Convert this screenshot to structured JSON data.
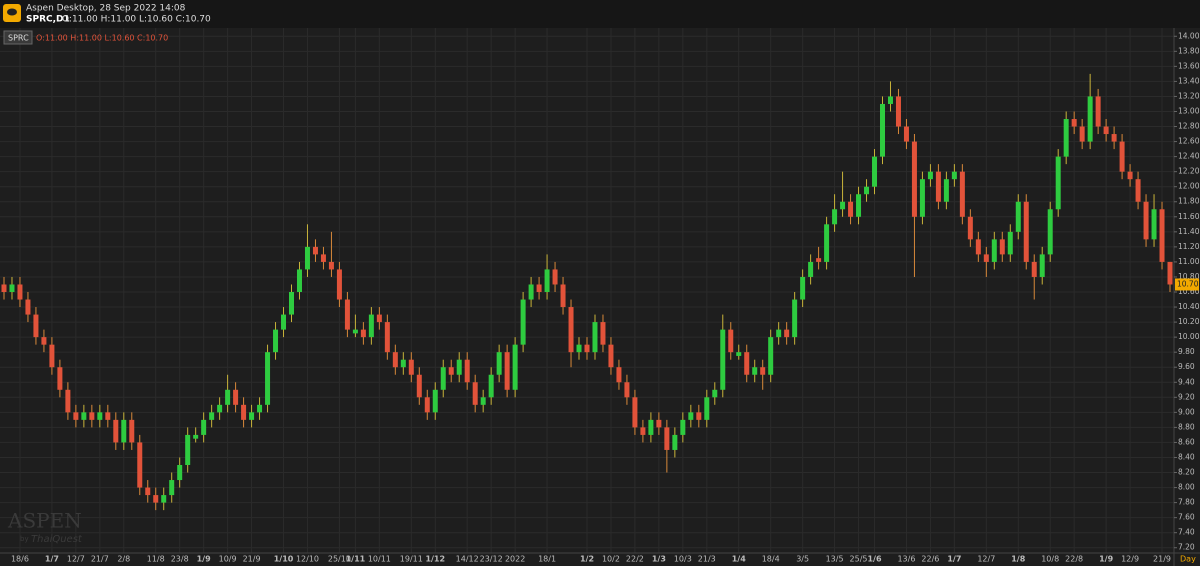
{
  "window": {
    "title": "Aspen Desktop, 28 Sep 2022 14:08",
    "symbol": "SPRC,D1",
    "ohlc_text": "O:11.00 H:11.00 L:10.60 C:10.70"
  },
  "chart_data": {
    "type": "candlestick",
    "symbol": "SPRC",
    "ohlc_label": "O:11.00 H:11.00 L:10.60 C:10.70",
    "up_color": "#2ecc40",
    "down_color": "#e2533a",
    "grid": true,
    "period": "Day",
    "watermark": {
      "brand": "ASPEN",
      "by": "by",
      "maker": "ThaiQuest"
    },
    "last_price": {
      "value": 10.7,
      "label": "10.70"
    },
    "ylim": [
      7.13,
      14.11
    ],
    "yticks": [
      {
        "value": 7.2,
        "label": "7.20"
      },
      {
        "value": 7.4,
        "label": "7.40"
      },
      {
        "value": 7.6,
        "label": "7.60"
      },
      {
        "value": 7.8,
        "label": "7.80"
      },
      {
        "value": 8,
        "label": "8.00"
      },
      {
        "value": 8.2,
        "label": "8.20"
      },
      {
        "value": 8.4,
        "label": "8.40"
      },
      {
        "value": 8.6,
        "label": "8.60"
      },
      {
        "value": 8.8,
        "label": "8.80"
      },
      {
        "value": 9,
        "label": "9.00"
      },
      {
        "value": 9.2,
        "label": "9.20"
      },
      {
        "value": 9.4,
        "label": "9.40"
      },
      {
        "value": 9.6,
        "label": "9.60"
      },
      {
        "value": 9.8,
        "label": "9.80"
      },
      {
        "value": 10,
        "label": "10.00"
      },
      {
        "value": 10.2,
        "label": "10.20"
      },
      {
        "value": 10.4,
        "label": "10.40"
      },
      {
        "value": 10.6,
        "label": "10.60"
      },
      {
        "value": 10.8,
        "label": "10.80"
      },
      {
        "value": 11,
        "label": "11.00"
      },
      {
        "value": 11.2,
        "label": "11.20"
      },
      {
        "value": 11.4,
        "label": "11.40"
      },
      {
        "value": 11.6,
        "label": "11.60"
      },
      {
        "value": 11.8,
        "label": "11.80"
      },
      {
        "value": 12,
        "label": "12.00"
      },
      {
        "value": 12.2,
        "label": "12.20"
      },
      {
        "value": 12.4,
        "label": "12.40"
      },
      {
        "value": 12.6,
        "label": "12.60"
      },
      {
        "value": 12.8,
        "label": "12.80"
      },
      {
        "value": 13,
        "label": "13.00"
      },
      {
        "value": 13.2,
        "label": "13.20"
      },
      {
        "value": 13.4,
        "label": "13.40"
      },
      {
        "value": 13.6,
        "label": "13.60"
      },
      {
        "value": 13.8,
        "label": "13.80"
      },
      {
        "value": 14,
        "label": "14.00"
      }
    ],
    "categories": [
      null,
      null,
      "18/6",
      null,
      null,
      null,
      "1/7",
      null,
      null,
      "12/7",
      null,
      null,
      "21/7",
      null,
      null,
      "2/8",
      null,
      null,
      null,
      "11/8",
      null,
      null,
      "23/8",
      null,
      null,
      "1/9",
      null,
      null,
      "10/9",
      null,
      null,
      "21/9",
      null,
      null,
      null,
      "1/10",
      null,
      null,
      "12/10",
      null,
      null,
      null,
      "25/10",
      null,
      "1/11",
      null,
      null,
      "10/11",
      null,
      null,
      null,
      "19/11",
      null,
      null,
      "1/12",
      null,
      null,
      null,
      "14/12",
      null,
      null,
      "23/12",
      null,
      null,
      "2022",
      null,
      null,
      null,
      "18/1",
      null,
      null,
      null,
      null,
      "1/2",
      null,
      null,
      "10/2",
      null,
      null,
      "22/2",
      null,
      null,
      "1/3",
      null,
      null,
      "10/3",
      null,
      null,
      "21/3",
      null,
      null,
      null,
      "1/4",
      null,
      null,
      null,
      "18/4",
      null,
      null,
      null,
      "3/5",
      null,
      null,
      null,
      "13/5",
      null,
      null,
      "25/5",
      null,
      "1/6",
      null,
      null,
      null,
      "13/6",
      null,
      null,
      "22/6",
      null,
      null,
      "1/7",
      null,
      null,
      null,
      "12/7",
      null,
      null,
      null,
      "1/8",
      null,
      null,
      null,
      "10/8",
      null,
      null,
      "22/8",
      null,
      null,
      null,
      "1/9",
      null,
      null,
      "12/9",
      null,
      null,
      null,
      "21/9",
      null
    ],
    "ohlc": [
      [
        10.7,
        10.8,
        10.5,
        10.6
      ],
      [
        10.6,
        10.8,
        10.5,
        10.7
      ],
      [
        10.7,
        10.8,
        10.4,
        10.5
      ],
      [
        10.5,
        10.6,
        10.2,
        10.3
      ],
      [
        10.3,
        10.4,
        9.9,
        10
      ],
      [
        10,
        10.1,
        9.8,
        9.9
      ],
      [
        9.9,
        10,
        9.5,
        9.6
      ],
      [
        9.6,
        9.7,
        9.2,
        9.3
      ],
      [
        9.3,
        9.4,
        8.9,
        9
      ],
      [
        9,
        9.1,
        8.8,
        8.9
      ],
      [
        8.9,
        9.1,
        8.8,
        9
      ],
      [
        9,
        9.1,
        8.8,
        8.9
      ],
      [
        8.9,
        9.1,
        8.8,
        9
      ],
      [
        9,
        9.1,
        8.8,
        8.9
      ],
      [
        8.9,
        9,
        8.5,
        8.6
      ],
      [
        8.6,
        9,
        8.5,
        8.9
      ],
      [
        8.9,
        9,
        8.5,
        8.6
      ],
      [
        8.6,
        8.7,
        7.9,
        8
      ],
      [
        8,
        8.1,
        7.8,
        7.9
      ],
      [
        7.9,
        8,
        7.7,
        7.8
      ],
      [
        7.8,
        8,
        7.7,
        7.9
      ],
      [
        7.9,
        8.2,
        7.8,
        8.1
      ],
      [
        8.1,
        8.4,
        8,
        8.3
      ],
      [
        8.3,
        8.8,
        8.2,
        8.7
      ],
      [
        8.65,
        8.8,
        8.6,
        8.7
      ],
      [
        8.7,
        9,
        8.6,
        8.9
      ],
      [
        8.9,
        9.1,
        8.8,
        9
      ],
      [
        9,
        9.2,
        8.9,
        9.1
      ],
      [
        9.1,
        9.5,
        9,
        9.3
      ],
      [
        9.3,
        9.4,
        9,
        9.1
      ],
      [
        9.1,
        9.2,
        8.8,
        8.9
      ],
      [
        8.9,
        9.1,
        8.8,
        9
      ],
      [
        9,
        9.2,
        8.9,
        9.1
      ],
      [
        9.1,
        9.9,
        9,
        9.8
      ],
      [
        9.8,
        10.2,
        9.7,
        10.1
      ],
      [
        10.1,
        10.4,
        10,
        10.3
      ],
      [
        10.3,
        10.7,
        10.2,
        10.6
      ],
      [
        10.6,
        11,
        10.5,
        10.9
      ],
      [
        10.9,
        11.5,
        10.8,
        11.2
      ],
      [
        11.2,
        11.3,
        11,
        11.1
      ],
      [
        11.1,
        11.2,
        10.9,
        11
      ],
      [
        11,
        11.4,
        10.8,
        10.9
      ],
      [
        10.9,
        11,
        10.4,
        10.5
      ],
      [
        10.5,
        10.6,
        10,
        10.1
      ],
      [
        10.05,
        10.3,
        10,
        10.1
      ],
      [
        10.1,
        10.2,
        9.9,
        10
      ],
      [
        10,
        10.4,
        9.9,
        10.3
      ],
      [
        10.3,
        10.4,
        10.1,
        10.2
      ],
      [
        10.2,
        10.3,
        9.7,
        9.8
      ],
      [
        9.8,
        9.9,
        9.5,
        9.6
      ],
      [
        9.6,
        9.8,
        9.5,
        9.7
      ],
      [
        9.7,
        9.8,
        9.4,
        9.5
      ],
      [
        9.5,
        9.6,
        9.1,
        9.2
      ],
      [
        9.2,
        9.3,
        8.9,
        9
      ],
      [
        9,
        9.4,
        8.9,
        9.3
      ],
      [
        9.3,
        9.7,
        9.2,
        9.6
      ],
      [
        9.6,
        9.7,
        9.4,
        9.5
      ],
      [
        9.5,
        9.8,
        9.4,
        9.7
      ],
      [
        9.7,
        9.8,
        9.3,
        9.4
      ],
      [
        9.4,
        9.5,
        9,
        9.1
      ],
      [
        9.1,
        9.3,
        9,
        9.2
      ],
      [
        9.2,
        9.6,
        9.1,
        9.5
      ],
      [
        9.5,
        9.9,
        9.4,
        9.8
      ],
      [
        9.8,
        9.9,
        9.2,
        9.3
      ],
      [
        9.3,
        10,
        9.2,
        9.9
      ],
      [
        9.9,
        10.6,
        9.8,
        10.5
      ],
      [
        10.5,
        10.8,
        10.4,
        10.7
      ],
      [
        10.7,
        10.8,
        10.5,
        10.6
      ],
      [
        10.6,
        11.1,
        10.5,
        10.9
      ],
      [
        10.9,
        11,
        10.6,
        10.7
      ],
      [
        10.7,
        10.8,
        10.3,
        10.4
      ],
      [
        10.4,
        10.5,
        9.6,
        9.8
      ],
      [
        9.8,
        10,
        9.7,
        9.9
      ],
      [
        9.9,
        10,
        9.7,
        9.8
      ],
      [
        9.8,
        10.3,
        9.7,
        10.2
      ],
      [
        10.2,
        10.3,
        9.8,
        9.9
      ],
      [
        9.9,
        10,
        9.5,
        9.6
      ],
      [
        9.6,
        9.7,
        9.3,
        9.4
      ],
      [
        9.4,
        9.5,
        9.1,
        9.2
      ],
      [
        9.2,
        9.3,
        8.7,
        8.8
      ],
      [
        8.8,
        8.9,
        8.6,
        8.7
      ],
      [
        8.7,
        9,
        8.6,
        8.9
      ],
      [
        8.9,
        9,
        8.7,
        8.8
      ],
      [
        8.8,
        8.9,
        8.2,
        8.5
      ],
      [
        8.5,
        8.8,
        8.4,
        8.7
      ],
      [
        8.7,
        9,
        8.6,
        8.9
      ],
      [
        8.9,
        9.1,
        8.8,
        9
      ],
      [
        9,
        9.1,
        8.8,
        8.9
      ],
      [
        8.9,
        9.3,
        8.8,
        9.2
      ],
      [
        9.2,
        9.4,
        9.1,
        9.3
      ],
      [
        9.3,
        10.3,
        9.2,
        10.1
      ],
      [
        10.1,
        10.2,
        9.7,
        9.8
      ],
      [
        9.75,
        9.9,
        9.7,
        9.8
      ],
      [
        9.8,
        9.9,
        9.4,
        9.5
      ],
      [
        9.5,
        9.7,
        9.4,
        9.6
      ],
      [
        9.6,
        9.7,
        9.3,
        9.5
      ],
      [
        9.5,
        10.1,
        9.4,
        10
      ],
      [
        10,
        10.2,
        9.9,
        10.1
      ],
      [
        10.1,
        10.2,
        9.9,
        10
      ],
      [
        10,
        10.6,
        9.9,
        10.5
      ],
      [
        10.5,
        10.9,
        10.4,
        10.8
      ],
      [
        10.8,
        11.1,
        10.7,
        11
      ],
      [
        11.05,
        11.2,
        10.9,
        11
      ],
      [
        11,
        11.6,
        10.9,
        11.5
      ],
      [
        11.5,
        11.9,
        11.4,
        11.7
      ],
      [
        11.7,
        12.2,
        11.6,
        11.8
      ],
      [
        11.8,
        11.9,
        11.5,
        11.6
      ],
      [
        11.6,
        12,
        11.5,
        11.9
      ],
      [
        11.9,
        12.1,
        11.8,
        12
      ],
      [
        12,
        12.5,
        11.9,
        12.4
      ],
      [
        12.4,
        13.2,
        12.3,
        13.1
      ],
      [
        13.1,
        13.4,
        13,
        13.2
      ],
      [
        13.2,
        13.3,
        12.7,
        12.8
      ],
      [
        12.8,
        12.9,
        12.5,
        12.6
      ],
      [
        12.6,
        12.7,
        10.8,
        11.6
      ],
      [
        11.6,
        12.2,
        11.5,
        12.1
      ],
      [
        12.1,
        12.3,
        12,
        12.2
      ],
      [
        12.2,
        12.3,
        11.7,
        11.8
      ],
      [
        11.8,
        12.2,
        11.7,
        12.1
      ],
      [
        12.1,
        12.3,
        12,
        12.2
      ],
      [
        12.2,
        12.3,
        11.5,
        11.6
      ],
      [
        11.6,
        11.7,
        11.2,
        11.3
      ],
      [
        11.3,
        11.4,
        11,
        11.1
      ],
      [
        11.1,
        11.2,
        10.8,
        11
      ],
      [
        11,
        11.4,
        10.9,
        11.3
      ],
      [
        11.3,
        11.4,
        11,
        11.1
      ],
      [
        11.1,
        11.5,
        11,
        11.4
      ],
      [
        11.4,
        11.9,
        11.3,
        11.8
      ],
      [
        11.8,
        11.9,
        10.9,
        11
      ],
      [
        11,
        11.1,
        10.5,
        10.8
      ],
      [
        10.8,
        11.2,
        10.7,
        11.1
      ],
      [
        11.1,
        11.8,
        11,
        11.7
      ],
      [
        11.7,
        12.5,
        11.6,
        12.4
      ],
      [
        12.4,
        13,
        12.3,
        12.9
      ],
      [
        12.9,
        13,
        12.7,
        12.8
      ],
      [
        12.8,
        12.9,
        12.5,
        12.6
      ],
      [
        12.6,
        13.5,
        12.5,
        13.2
      ],
      [
        13.2,
        13.3,
        12.7,
        12.8
      ],
      [
        12.8,
        12.9,
        12.6,
        12.7
      ],
      [
        12.7,
        12.8,
        12.5,
        12.6
      ],
      [
        12.6,
        12.7,
        12.1,
        12.2
      ],
      [
        12.2,
        12.3,
        12,
        12.1
      ],
      [
        12.1,
        12.2,
        11.7,
        11.8
      ],
      [
        11.8,
        11.9,
        11.2,
        11.3
      ],
      [
        11.3,
        11.9,
        11.2,
        11.7
      ],
      [
        11.7,
        11.8,
        10.9,
        11
      ],
      [
        11,
        11,
        10.6,
        10.7
      ]
    ]
  }
}
